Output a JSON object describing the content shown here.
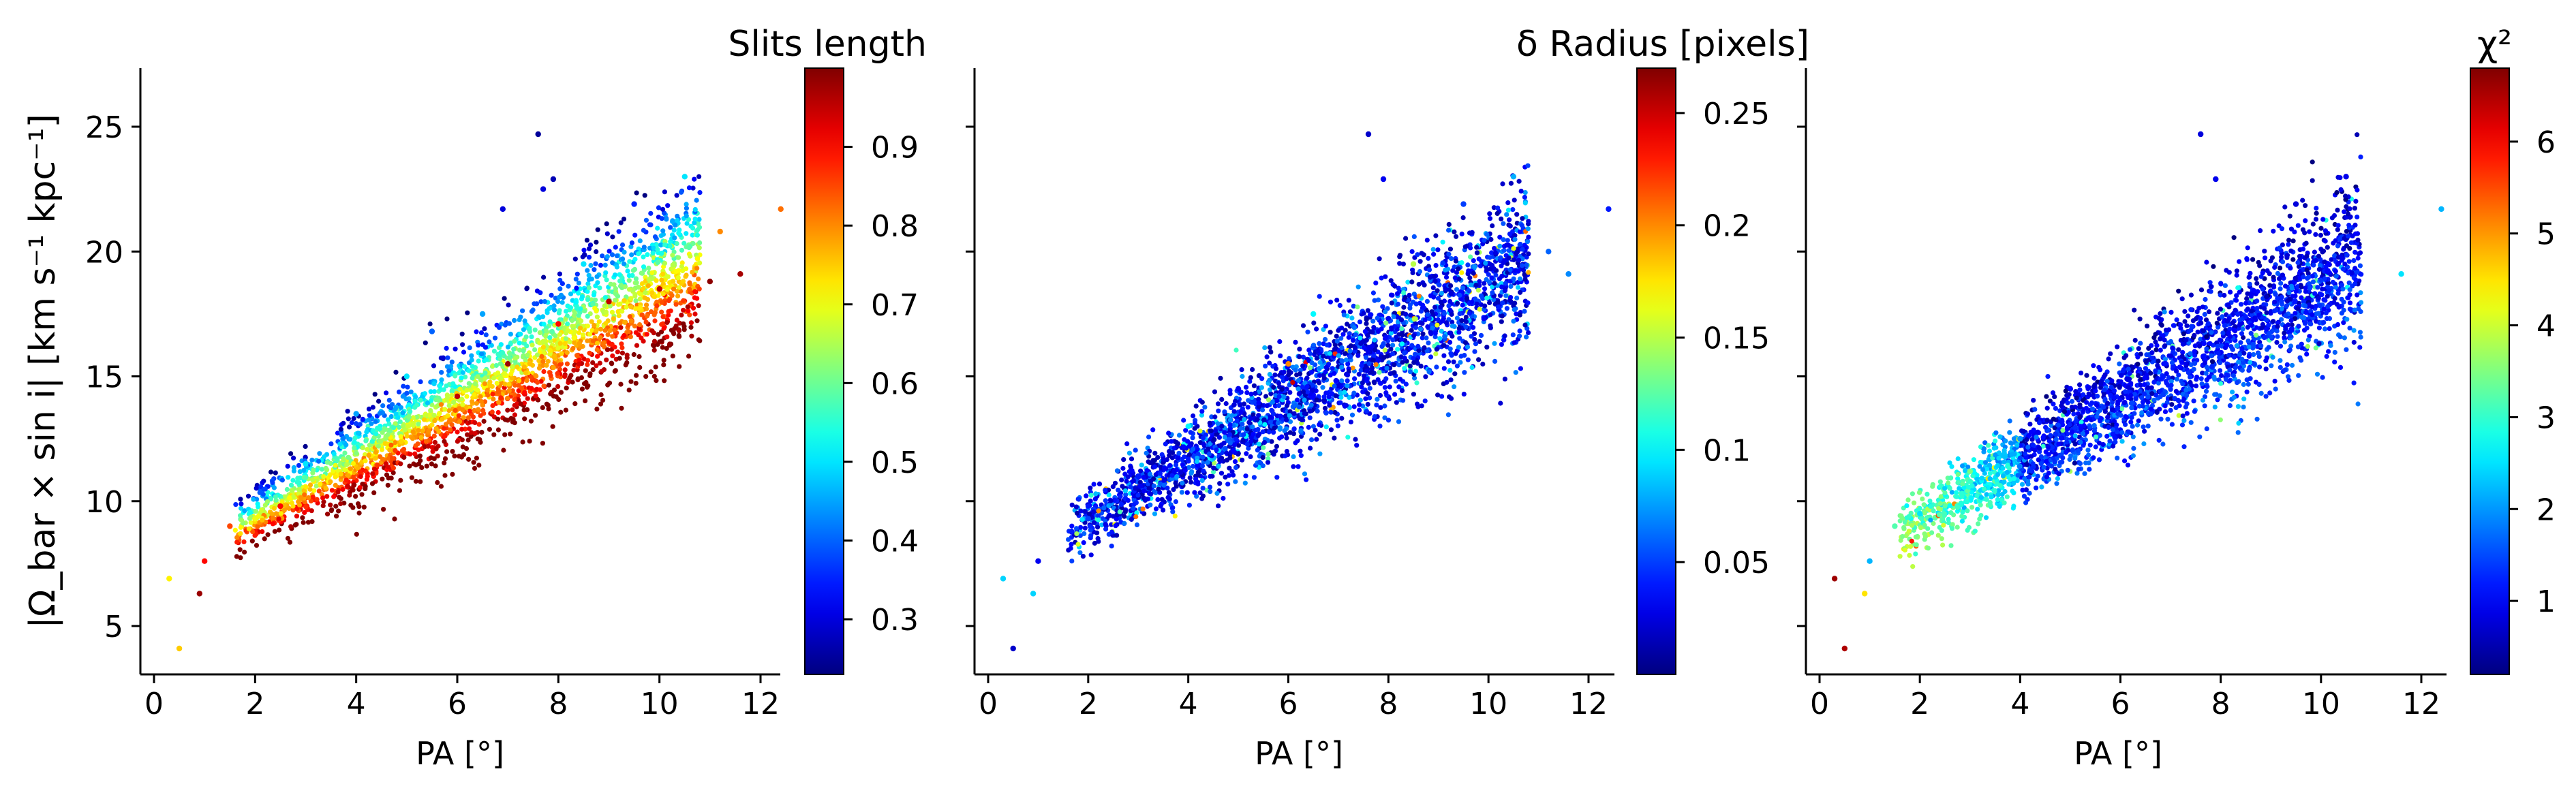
{
  "figure": {
    "ylabel": "|Ω_bar × sin i|   [km s⁻¹ kpc⁻¹]",
    "xlabel": "PA [°]"
  },
  "chart_data": [
    {
      "type": "scatter",
      "title": "",
      "xlabel": "PA [°]",
      "ylabel": "|Ω_bar × sin i|   [km s⁻¹ kpc⁻¹]",
      "xlim": [
        -0.3,
        13.3
      ],
      "ylim": [
        3,
        27.2
      ],
      "xticks": [
        0,
        2,
        4,
        6,
        8,
        10,
        12
      ],
      "yticks": [
        5,
        10,
        15,
        20,
        25
      ],
      "colormap": "jet",
      "colorbar": {
        "label": "Slits length",
        "range": [
          0.23,
          1.0
        ],
        "ticks": [
          0.3,
          0.4,
          0.5,
          0.6,
          0.7,
          0.8,
          0.9
        ]
      },
      "point_color_trend": "high values (red) along lower edge of the band, low values (blue) along upper edge",
      "band_relation": "y ≈ 1.18·x + 6.9 with increasing spread at larger x",
      "points": [
        [
          0.3,
          6.9,
          0.72
        ],
        [
          0.5,
          4.1,
          0.75
        ],
        [
          0.9,
          6.3,
          0.98
        ],
        [
          1.0,
          7.6,
          0.9
        ],
        [
          1.5,
          9.0,
          0.85
        ],
        [
          2.0,
          9.3,
          0.7
        ],
        [
          2.5,
          9.8,
          0.9
        ],
        [
          3.0,
          11.5,
          0.5
        ],
        [
          4.0,
          13.5,
          0.45
        ],
        [
          5.0,
          15.0,
          0.5
        ],
        [
          5.5,
          16.8,
          0.4
        ],
        [
          6.0,
          14.2,
          0.95
        ],
        [
          6.5,
          17.5,
          0.45
        ],
        [
          6.9,
          21.7,
          0.3
        ],
        [
          7.0,
          15.5,
          0.98
        ],
        [
          7.6,
          24.7,
          0.25
        ],
        [
          7.7,
          22.5,
          0.3
        ],
        [
          7.9,
          22.9,
          0.27
        ],
        [
          8.0,
          17.1,
          0.9
        ],
        [
          8.5,
          19.5,
          0.5
        ],
        [
          9.0,
          18.0,
          0.95
        ],
        [
          9.5,
          21.9,
          0.35
        ],
        [
          10.0,
          18.5,
          0.95
        ],
        [
          10.5,
          23.0,
          0.5
        ],
        [
          11.0,
          18.8,
          0.99
        ],
        [
          11.2,
          20.8,
          0.8
        ],
        [
          11.6,
          19.1,
          0.97
        ],
        [
          12.4,
          21.7,
          0.82
        ]
      ]
    },
    {
      "type": "scatter",
      "title": "",
      "xlabel": "PA [°]",
      "ylabel": "",
      "xlim": [
        -0.3,
        13.3
      ],
      "ylim": [
        3,
        27.2
      ],
      "xticks": [
        0,
        2,
        4,
        6,
        8,
        10,
        12
      ],
      "yticks": [
        5,
        10,
        15,
        20,
        25
      ],
      "colormap": "jet",
      "colorbar": {
        "label": "δ Radius [pixels]",
        "range": [
          0.0,
          0.27
        ],
        "ticks": [
          0.05,
          0.1,
          0.15,
          0.2,
          0.25
        ]
      },
      "point_color_trend": "mostly low values (blue), scattered higher values",
      "band_relation": "y ≈ 1.18·x + 6.9 with increasing spread at larger x",
      "points": [
        [
          0.3,
          6.9,
          0.09
        ],
        [
          0.5,
          4.1,
          0.02
        ],
        [
          0.9,
          6.3,
          0.09
        ],
        [
          1.0,
          7.6,
          0.03
        ],
        [
          2.0,
          9.3,
          0.05
        ],
        [
          3.0,
          11.0,
          0.04
        ],
        [
          4.0,
          13.0,
          0.1
        ],
        [
          5.0,
          14.5,
          0.03
        ],
        [
          6.0,
          15.5,
          0.2
        ],
        [
          6.5,
          17.5,
          0.1
        ],
        [
          7.6,
          24.7,
          0.02
        ],
        [
          7.9,
          22.9,
          0.03
        ],
        [
          8.5,
          19.5,
          0.15
        ],
        [
          9.5,
          21.9,
          0.05
        ],
        [
          10.5,
          23.0,
          0.08
        ],
        [
          11.2,
          20.0,
          0.06
        ],
        [
          11.6,
          19.1,
          0.07
        ],
        [
          12.4,
          21.7,
          0.04
        ]
      ]
    },
    {
      "type": "scatter",
      "title": "",
      "xlabel": "PA [°]",
      "ylabel": "",
      "xlim": [
        -0.3,
        13.3
      ],
      "ylim": [
        3,
        27.2
      ],
      "xticks": [
        0,
        2,
        4,
        6,
        8,
        10,
        12
      ],
      "yticks": [
        5,
        10,
        15,
        20,
        25
      ],
      "colormap": "jet",
      "colorbar": {
        "label": "χ²",
        "range": [
          0.2,
          6.8
        ],
        "ticks": [
          1,
          2,
          3,
          4,
          5,
          6
        ]
      },
      "point_color_trend": "mostly low values (blue), teal-green points at small PA and along lower edge",
      "band_relation": "y ≈ 1.18·x + 6.9 with increasing spread at larger x",
      "points": [
        [
          0.3,
          6.9,
          6.6
        ],
        [
          0.5,
          4.1,
          6.5
        ],
        [
          0.9,
          6.3,
          4.5
        ],
        [
          1.0,
          7.6,
          2.2
        ],
        [
          1.5,
          9.0,
          3.2
        ],
        [
          2.0,
          9.5,
          2.5
        ],
        [
          3.0,
          11.2,
          3.5
        ],
        [
          4.0,
          12.5,
          2.0
        ],
        [
          5.0,
          14.5,
          1.0
        ],
        [
          7.6,
          24.7,
          0.8
        ],
        [
          7.9,
          22.9,
          0.9
        ],
        [
          9.5,
          21.9,
          0.8
        ],
        [
          10.5,
          23.0,
          0.9
        ],
        [
          11.6,
          19.1,
          2.5
        ],
        [
          12.4,
          21.7,
          2.2
        ]
      ]
    }
  ]
}
